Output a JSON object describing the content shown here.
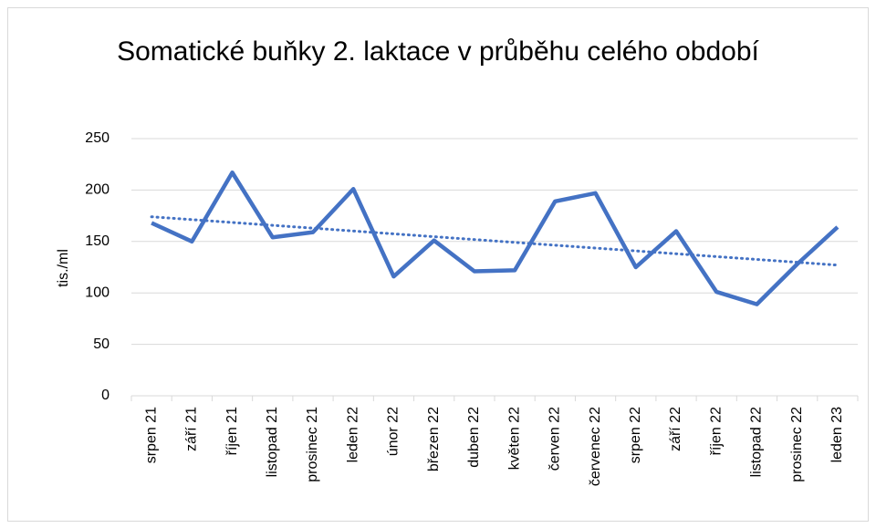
{
  "chart_data": {
    "type": "line",
    "title": "Somatické buňky 2. laktace v průběhu celého období",
    "y_label": "tis./ml",
    "categories": [
      "srpen 21",
      "září 21",
      "říjen 21",
      "listopad 21",
      "prosinec 21",
      "leden 22",
      "únor 22",
      "březen 22",
      "duben 22",
      "květen 22",
      "červen 22",
      "červenec 22",
      "srpen 22",
      "září 22",
      "říjen 22",
      "listopad 22",
      "prosinec 22",
      "leden 23"
    ],
    "series": [
      {
        "color": "#4472c4",
        "values": [
          168,
          150,
          217,
          154,
          159,
          201,
          116,
          151,
          121,
          122,
          189,
          197,
          125,
          160,
          101,
          89,
          128,
          164
        ]
      }
    ],
    "trendline": {
      "color": "#4472c4",
      "values": [
        174,
        127
      ]
    },
    "ylim": [
      0,
      250
    ],
    "yticks": [
      0,
      50,
      100,
      150,
      200,
      250
    ],
    "grid": true
  }
}
